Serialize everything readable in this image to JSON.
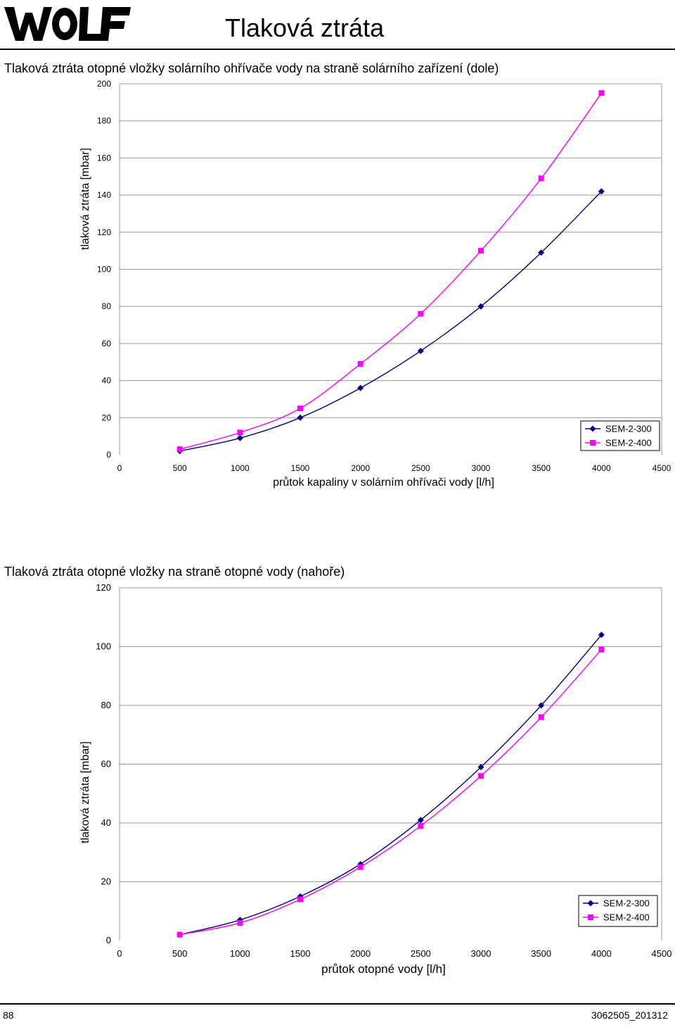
{
  "header": {
    "logo_alt": "WOLF",
    "page_title": "Tlaková ztráta"
  },
  "footer": {
    "page_number": "88",
    "document_code": "3062505_201312"
  },
  "colors": {
    "series1": "#000080",
    "series2": "#FF00FF",
    "gridline": "#999999"
  },
  "chart_data": [
    {
      "type": "line",
      "title": "Tlaková ztráta otopné vložky solárního ohřívače vody na straně solárního zařízení (dole)",
      "xlabel": "průtok kapaliny v solárním ohřívači vody [l/h]",
      "ylabel": "tlaková ztráta [mbar]",
      "xlim": [
        0,
        4500
      ],
      "ylim": [
        0,
        200
      ],
      "x_ticks": [
        0,
        500,
        1000,
        1500,
        2000,
        2500,
        3000,
        3500,
        4000,
        4500
      ],
      "y_ticks": [
        0,
        20,
        40,
        60,
        80,
        100,
        120,
        140,
        160,
        180,
        200
      ],
      "grid": "horizontal",
      "legend_position": "bottom-right",
      "x": [
        500,
        1000,
        1500,
        2000,
        2500,
        3000,
        3500,
        4000
      ],
      "series": [
        {
          "name": "SEM-2-300",
          "marker": "diamond",
          "values": [
            2,
            9,
            20,
            36,
            56,
            80,
            109,
            142
          ]
        },
        {
          "name": "SEM-2-400",
          "marker": "square",
          "values": [
            3,
            12,
            25,
            49,
            76,
            110,
            149,
            195
          ]
        }
      ]
    },
    {
      "type": "line",
      "title": "Tlaková ztráta otopné vložky na straně otopné vody (nahoře)",
      "xlabel": "průtok otopné vody [l/h]",
      "ylabel": "tlaková ztráta [mbar]",
      "xlim": [
        0,
        4500
      ],
      "ylim": [
        0,
        120
      ],
      "x_ticks": [
        0,
        500,
        1000,
        1500,
        2000,
        2500,
        3000,
        3500,
        4000,
        4500
      ],
      "y_ticks": [
        0,
        20,
        40,
        60,
        80,
        100,
        120
      ],
      "grid": "horizontal",
      "legend_position": "bottom-right",
      "x": [
        500,
        1000,
        1500,
        2000,
        2500,
        3000,
        3500,
        4000
      ],
      "series": [
        {
          "name": "SEM-2-300",
          "marker": "diamond",
          "values": [
            2,
            7,
            15,
            26,
            41,
            59,
            80,
            104
          ]
        },
        {
          "name": "SEM-2-400",
          "marker": "square",
          "values": [
            2,
            6,
            14,
            25,
            39,
            56,
            76,
            99
          ]
        }
      ]
    }
  ]
}
